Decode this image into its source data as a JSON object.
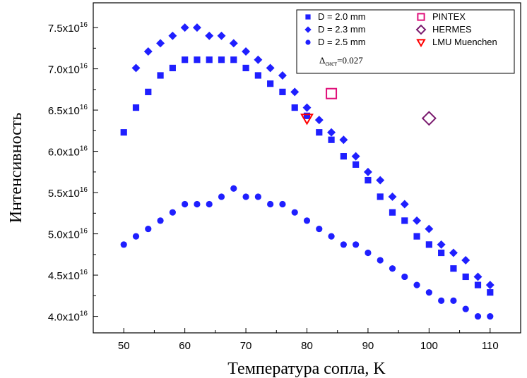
{
  "chart_data": {
    "type": "scatter",
    "title": "",
    "xlabel": "Температура сопла, K",
    "ylabel": "Интенсивность",
    "xlim": [
      45,
      115
    ],
    "ylim": [
      3.8,
      7.8
    ],
    "y_exponent": "16",
    "x_ticks": [
      50,
      60,
      70,
      80,
      90,
      100,
      110
    ],
    "y_ticks": [
      4.0,
      4.5,
      5.0,
      5.5,
      6.0,
      6.5,
      7.0,
      7.5
    ],
    "y_tick_labels": [
      "4.0x10",
      "4.5x10",
      "5.0x10",
      "5.5x10",
      "6.0x10",
      "6.5x10",
      "7.0x10",
      "7.5x10"
    ],
    "grid": false,
    "legend_position": "top-right",
    "legend_note": {
      "main": "Δ",
      "sub": "сист",
      "rest": "=0.027"
    },
    "series": [
      {
        "name": "D = 2.0 mm",
        "marker": "square",
        "color": "#1f1fff",
        "points": [
          [
            50,
            6.23
          ],
          [
            52,
            6.53
          ],
          [
            54,
            6.72
          ],
          [
            56,
            6.92
          ],
          [
            58,
            7.01
          ],
          [
            60,
            7.11
          ],
          [
            62,
            7.11
          ],
          [
            64,
            7.11
          ],
          [
            66,
            7.11
          ],
          [
            68,
            7.11
          ],
          [
            70,
            7.01
          ],
          [
            72,
            6.92
          ],
          [
            74,
            6.82
          ],
          [
            76,
            6.72
          ],
          [
            78,
            6.53
          ],
          [
            80,
            6.43
          ],
          [
            82,
            6.23
          ],
          [
            84,
            6.14
          ],
          [
            86,
            5.94
          ],
          [
            88,
            5.84
          ],
          [
            90,
            5.65
          ],
          [
            92,
            5.45
          ],
          [
            94,
            5.26
          ],
          [
            96,
            5.16
          ],
          [
            98,
            4.97
          ],
          [
            100,
            4.87
          ],
          [
            102,
            4.77
          ],
          [
            104,
            4.58
          ],
          [
            106,
            4.48
          ],
          [
            108,
            4.38
          ],
          [
            110,
            4.29
          ]
        ]
      },
      {
        "name": "D = 2.3 mm",
        "marker": "diamond",
        "color": "#1f1fff",
        "points": [
          [
            52,
            7.01
          ],
          [
            54,
            7.21
          ],
          [
            56,
            7.31
          ],
          [
            58,
            7.4
          ],
          [
            60,
            7.5
          ],
          [
            62,
            7.5
          ],
          [
            64,
            7.4
          ],
          [
            66,
            7.4
          ],
          [
            68,
            7.31
          ],
          [
            70,
            7.21
          ],
          [
            72,
            7.11
          ],
          [
            74,
            7.01
          ],
          [
            76,
            6.92
          ],
          [
            78,
            6.72
          ],
          [
            80,
            6.53
          ],
          [
            82,
            6.38
          ],
          [
            84,
            6.23
          ],
          [
            86,
            6.14
          ],
          [
            88,
            5.94
          ],
          [
            90,
            5.75
          ],
          [
            92,
            5.65
          ],
          [
            94,
            5.45
          ],
          [
            96,
            5.36
          ],
          [
            98,
            5.16
          ],
          [
            100,
            5.06
          ],
          [
            102,
            4.87
          ],
          [
            104,
            4.77
          ],
          [
            106,
            4.68
          ],
          [
            108,
            4.48
          ],
          [
            110,
            4.38
          ]
        ]
      },
      {
        "name": "D = 2.5 mm",
        "marker": "circle",
        "color": "#1f1fff",
        "points": [
          [
            50,
            4.87
          ],
          [
            52,
            4.97
          ],
          [
            54,
            5.06
          ],
          [
            56,
            5.16
          ],
          [
            58,
            5.26
          ],
          [
            60,
            5.36
          ],
          [
            62,
            5.36
          ],
          [
            64,
            5.36
          ],
          [
            66,
            5.45
          ],
          [
            68,
            5.55
          ],
          [
            70,
            5.45
          ],
          [
            72,
            5.45
          ],
          [
            74,
            5.36
          ],
          [
            76,
            5.36
          ],
          [
            78,
            5.26
          ],
          [
            80,
            5.16
          ],
          [
            82,
            5.06
          ],
          [
            84,
            4.97
          ],
          [
            86,
            4.87
          ],
          [
            88,
            4.87
          ],
          [
            90,
            4.77
          ],
          [
            92,
            4.68
          ],
          [
            94,
            4.58
          ],
          [
            96,
            4.48
          ],
          [
            98,
            4.38
          ],
          [
            100,
            4.29
          ],
          [
            102,
            4.19
          ],
          [
            104,
            4.19
          ],
          [
            106,
            4.09
          ],
          [
            108,
            4.0
          ],
          [
            110,
            4.0
          ]
        ]
      },
      {
        "name": "PINTEX",
        "marker": "open-square",
        "color": "#e0107a",
        "points": [
          [
            84,
            6.7
          ]
        ]
      },
      {
        "name": "HERMES",
        "marker": "open-diamond",
        "color": "#7a1a6e",
        "points": [
          [
            100,
            6.4
          ]
        ]
      },
      {
        "name": "LMU Muenchen",
        "marker": "open-triangle-down",
        "color": "#ff0000",
        "points": [
          [
            80,
            6.4
          ]
        ]
      }
    ]
  }
}
